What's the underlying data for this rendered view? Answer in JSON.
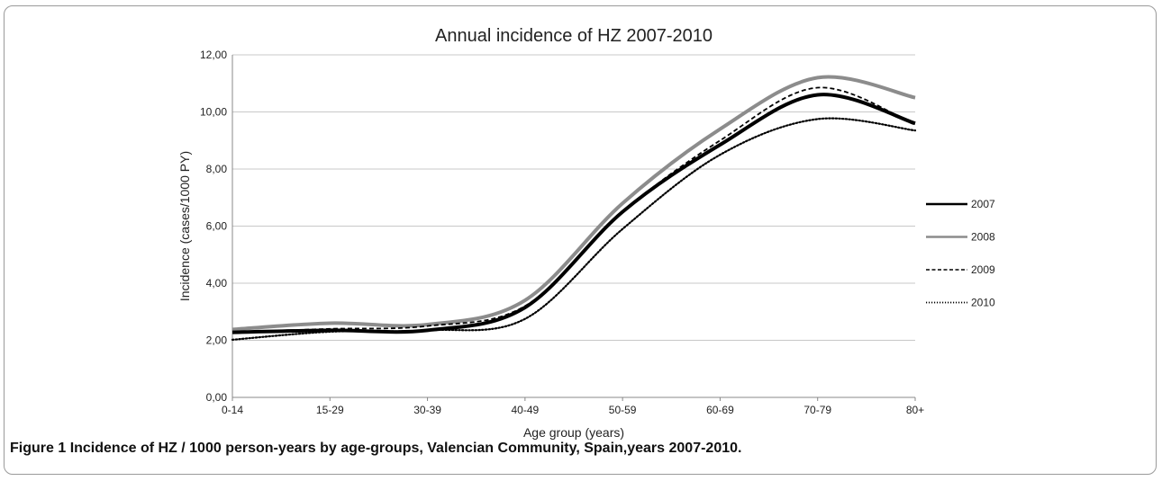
{
  "figure": {
    "caption_label": "Figure 1",
    "caption_text": "Incidence of HZ / 1000 person-years by age-groups, Valencian Community, Spain,years 2007-2010."
  },
  "chart_data": {
    "type": "line",
    "title": "Annual incidence of HZ 2007-2010",
    "xlabel": "Age group (years)",
    "ylabel": "Incidence (cases/1000 PY)",
    "categories": [
      "0-14",
      "15-29",
      "30-39",
      "40-49",
      "50-59",
      "60-69",
      "70-79",
      "80+"
    ],
    "ylim": [
      0,
      12
    ],
    "yticks": [
      "0,00",
      "2,00",
      "4,00",
      "6,00",
      "8,00",
      "10,00",
      "12,00"
    ],
    "grid": true,
    "legend_position": "right",
    "series": [
      {
        "name": "2007",
        "values": [
          2.28,
          2.35,
          2.35,
          3.15,
          6.5,
          8.85,
          10.6,
          9.6
        ],
        "color": "#000000",
        "style": "solid-thick"
      },
      {
        "name": "2008",
        "values": [
          2.38,
          2.6,
          2.55,
          3.4,
          6.8,
          9.4,
          11.2,
          10.5
        ],
        "color": "#8c8c8c",
        "style": "solid-thick"
      },
      {
        "name": "2009",
        "values": [
          2.28,
          2.4,
          2.5,
          3.2,
          6.5,
          9.0,
          10.85,
          9.55
        ],
        "color": "#000000",
        "style": "dashed"
      },
      {
        "name": "2010",
        "values": [
          2.02,
          2.3,
          2.35,
          2.75,
          5.9,
          8.5,
          9.75,
          9.35
        ],
        "color": "#000000",
        "style": "dotted"
      }
    ]
  }
}
